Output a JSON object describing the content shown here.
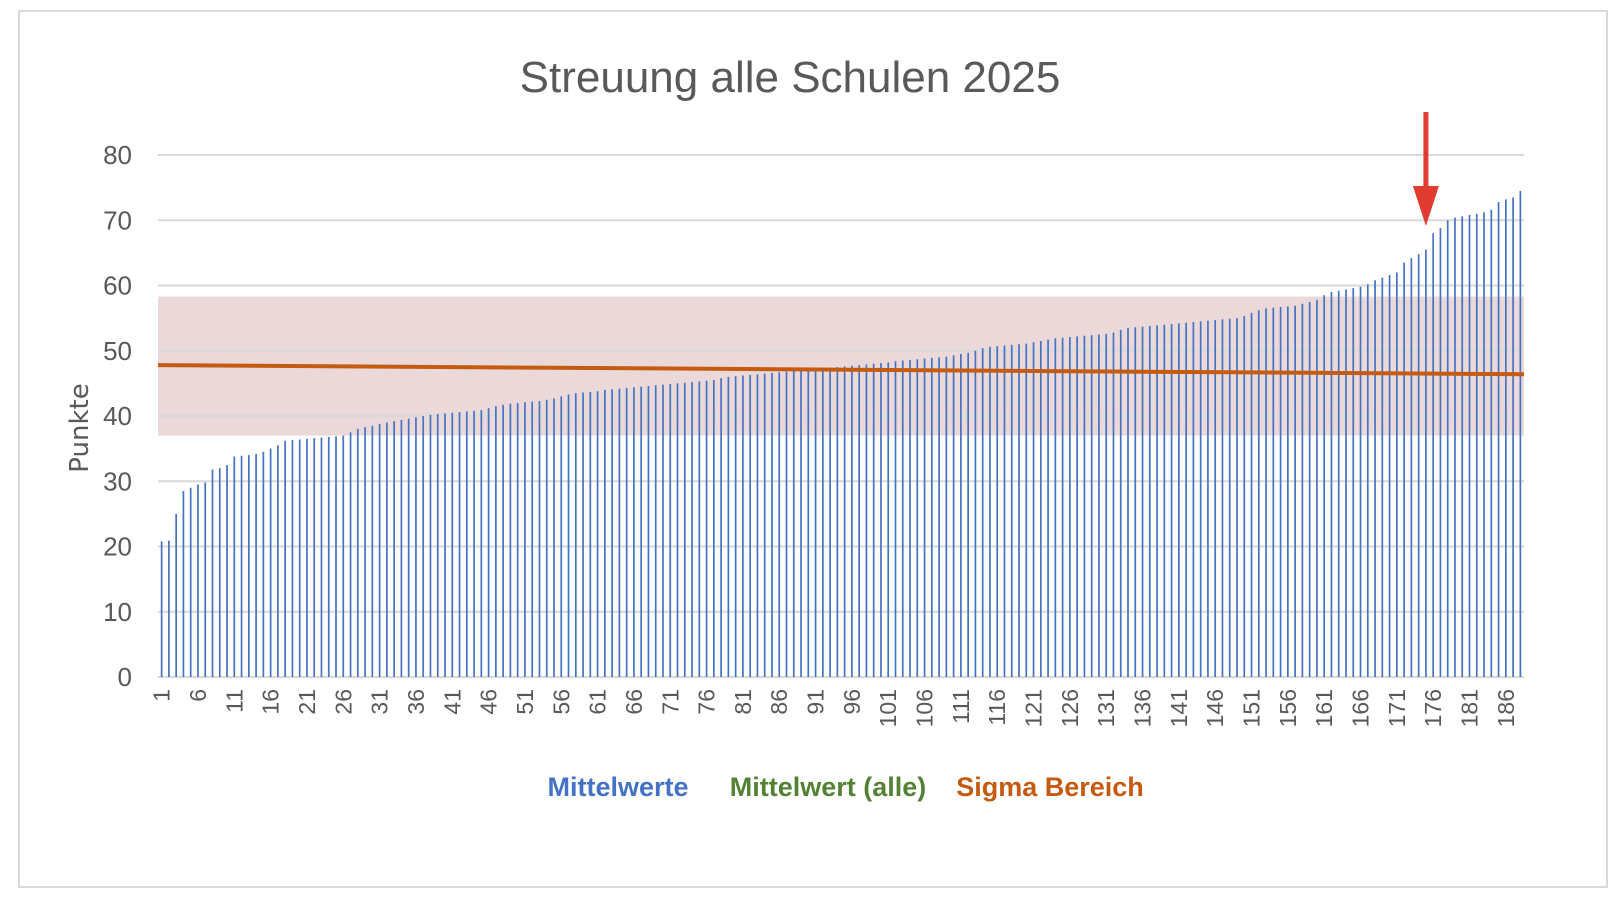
{
  "chart_data": {
    "type": "bar",
    "title": "Streuung alle Schulen 2025",
    "xlabel": "",
    "ylabel": "Punkte",
    "ylim": [
      0,
      80
    ],
    "yticks": [
      0,
      10,
      20,
      30,
      40,
      50,
      60,
      70,
      80
    ],
    "grid": true,
    "legend_position": "bottom",
    "colors": {
      "bars": "#4472c4",
      "mean_line": "#c55a11",
      "sigma_band": "#e8d2d2",
      "annotation_arrow": "#e03c31",
      "gridline": "#d9d9d9",
      "text": "#595959"
    },
    "x_tick_labels": [
      "1",
      "6",
      "11",
      "16",
      "21",
      "26",
      "31",
      "36",
      "41",
      "46",
      "51",
      "56",
      "61",
      "66",
      "71",
      "76",
      "81",
      "86",
      "91",
      "96",
      "101",
      "106",
      "111",
      "116",
      "121",
      "126",
      "131",
      "136",
      "141",
      "146",
      "151",
      "156",
      "161",
      "166",
      "171",
      "176",
      "181",
      "186"
    ],
    "series": [
      {
        "name": "Mittelwerte",
        "color": "#4472c4",
        "values": [
          20.8,
          20.9,
          25.0,
          28.5,
          29.0,
          29.5,
          29.8,
          31.8,
          32.0,
          32.5,
          33.8,
          33.9,
          34.0,
          34.2,
          34.5,
          35.0,
          35.5,
          36.2,
          36.3,
          36.4,
          36.5,
          36.6,
          36.7,
          36.8,
          36.9,
          37.0,
          37.5,
          38.0,
          38.3,
          38.5,
          38.8,
          39.0,
          39.2,
          39.4,
          39.6,
          39.8,
          40.0,
          40.2,
          40.3,
          40.4,
          40.5,
          40.6,
          40.7,
          40.8,
          40.9,
          41.2,
          41.5,
          41.7,
          41.9,
          42.0,
          42.1,
          42.2,
          42.3,
          42.5,
          42.7,
          43.0,
          43.3,
          43.5,
          43.6,
          43.7,
          43.8,
          44.0,
          44.1,
          44.2,
          44.3,
          44.4,
          44.5,
          44.6,
          44.7,
          44.8,
          44.9,
          45.0,
          45.1,
          45.2,
          45.3,
          45.4,
          45.5,
          45.8,
          46.0,
          46.1,
          46.2,
          46.3,
          46.4,
          46.5,
          46.6,
          46.7,
          46.8,
          46.9,
          47.0,
          47.1,
          47.2,
          47.3,
          47.4,
          47.5,
          47.6,
          47.7,
          47.8,
          47.9,
          48.0,
          48.1,
          48.2,
          48.4,
          48.5,
          48.6,
          48.7,
          48.8,
          48.9,
          49.0,
          49.1,
          49.3,
          49.5,
          49.7,
          50.0,
          50.4,
          50.6,
          50.7,
          50.8,
          50.9,
          51.0,
          51.1,
          51.3,
          51.5,
          51.7,
          51.9,
          52.0,
          52.1,
          52.2,
          52.3,
          52.4,
          52.5,
          52.6,
          52.8,
          53.2,
          53.5,
          53.6,
          53.7,
          53.8,
          53.9,
          54.0,
          54.1,
          54.2,
          54.3,
          54.4,
          54.5,
          54.6,
          54.7,
          54.8,
          54.9,
          55.0,
          55.3,
          55.8,
          56.2,
          56.5,
          56.6,
          56.7,
          56.8,
          56.9,
          57.2,
          57.5,
          57.8,
          58.5,
          59.0,
          59.2,
          59.4,
          59.6,
          59.8,
          60.2,
          60.8,
          61.2,
          61.6,
          62.0,
          63.5,
          64.2,
          64.8,
          65.5,
          68.0,
          68.8,
          70.0,
          70.4,
          70.6,
          70.8,
          71.0,
          71.2,
          71.6,
          72.8,
          73.2,
          73.5,
          74.5
        ]
      },
      {
        "name": "Mittelwert (alle)",
        "color": "#70ad47",
        "values": []
      },
      {
        "name": "Sigma Bereich",
        "color": "#c55a11",
        "mean_start": 47.8,
        "mean_end": 46.4,
        "band_low": 37.0,
        "band_high": 58.3
      }
    ],
    "annotations": [
      {
        "type": "arrow",
        "direction": "down",
        "points_to_index": 174
      }
    ]
  },
  "legend": {
    "items": [
      {
        "label": "Mittelwerte",
        "color": "#4472c4"
      },
      {
        "label": "Mittelwert (alle)",
        "color": "#548235"
      },
      {
        "label": "Sigma Bereich",
        "color": "#c55a11"
      }
    ]
  }
}
